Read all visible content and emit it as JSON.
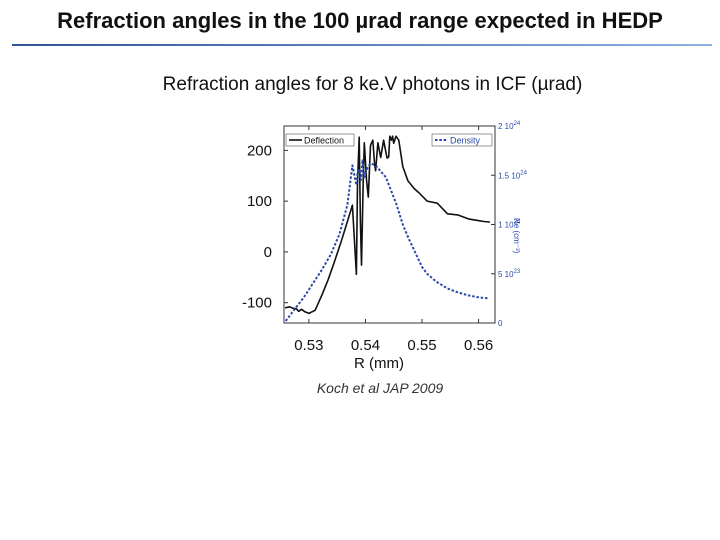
{
  "slide": {
    "title": "Refraction angles in the 100  µrad range expected in HEDP",
    "subtitle": "Refraction angles for 8 ke.V photons in ICF (µrad)",
    "citation": "Koch et al JAP 2009"
  },
  "chart_data": {
    "type": "line",
    "title": "Refraction angles for 8 ke.V photons in ICF (µrad)",
    "xlabel": "R (mm)",
    "ylabel": "",
    "y2label": "Ne (cm⁻³)",
    "xlim": [
      0.5256,
      0.5629
    ],
    "ylim": [
      -140,
      248
    ],
    "y2lim": [
      0,
      2.0
    ],
    "x_ticks": [
      "0.53",
      "0.54",
      "0.55",
      "0.56"
    ],
    "x_tick_values": [
      0.53,
      0.54,
      0.55,
      0.56
    ],
    "y_ticks": [
      "200",
      "100",
      "0",
      "-100"
    ],
    "y_tick_values": [
      200,
      100,
      0,
      -100
    ],
    "y2_ticks": [
      "2 10",
      "1.5 10",
      "1 10",
      "5 10",
      "0"
    ],
    "y2_tick_values": [
      2.0,
      1.5,
      1.0,
      0.5,
      0
    ],
    "y2_tick_exponents": [
      "24",
      "24",
      "24",
      "23",
      ""
    ],
    "grid": false,
    "legend_position": "top",
    "series": [
      {
        "name": "Deflection",
        "axis": "left",
        "color": "#111111",
        "dash": "solid",
        "x": [
          0.5258,
          0.5266,
          0.5272,
          0.5278,
          0.5282,
          0.5287,
          0.5293,
          0.53,
          0.5311,
          0.5323,
          0.5334,
          0.5345,
          0.5357,
          0.5368,
          0.5377,
          0.5384,
          0.5386,
          0.5389,
          0.5391,
          0.5393,
          0.5396,
          0.5398,
          0.5402,
          0.5405,
          0.5409,
          0.5413,
          0.5416,
          0.5418,
          0.5422,
          0.5427,
          0.5432,
          0.5438,
          0.5441,
          0.5443,
          0.5446,
          0.5448,
          0.545,
          0.5454,
          0.5459,
          0.5466,
          0.5475,
          0.5486,
          0.5495,
          0.5509,
          0.5527,
          0.5545,
          0.5563,
          0.5582,
          0.5598,
          0.5609,
          0.562
        ],
        "y": [
          -110,
          -108,
          -111,
          -112,
          -117,
          -113,
          -118,
          -121,
          -115,
          -85,
          -55,
          -20,
          20,
          60,
          92,
          -44,
          136,
          226,
          60,
          -26,
          138,
          215,
          140,
          108,
          210,
          220,
          175,
          160,
          215,
          186,
          220,
          185,
          187,
          228,
          220,
          228,
          214,
          228,
          220,
          168,
          140,
          125,
          116,
          100,
          96,
          75,
          73,
          65,
          62,
          60,
          59
        ]
      },
      {
        "name": "Density",
        "axis": "right",
        "color": "#2a4aa8",
        "dash": "dashed",
        "x": [
          0.5259,
          0.5275,
          0.5291,
          0.5307,
          0.5323,
          0.5339,
          0.5354,
          0.5368,
          0.5377,
          0.5384,
          0.5386,
          0.5389,
          0.5392,
          0.5395,
          0.5398,
          0.54,
          0.5404,
          0.5409,
          0.5418,
          0.5427,
          0.5436,
          0.5445,
          0.5455,
          0.5466,
          0.5477,
          0.5491,
          0.55,
          0.5509,
          0.5525,
          0.5545,
          0.5564,
          0.5582,
          0.56,
          0.5618
        ],
        "y": [
          0.02,
          0.14,
          0.26,
          0.4,
          0.54,
          0.7,
          0.9,
          1.2,
          1.6,
          1.4,
          1.52,
          1.56,
          1.45,
          1.66,
          1.48,
          1.53,
          1.58,
          1.62,
          1.6,
          1.54,
          1.48,
          1.35,
          1.2,
          1.0,
          0.85,
          0.68,
          0.57,
          0.5,
          0.42,
          0.35,
          0.31,
          0.28,
          0.26,
          0.25
        ]
      }
    ]
  }
}
